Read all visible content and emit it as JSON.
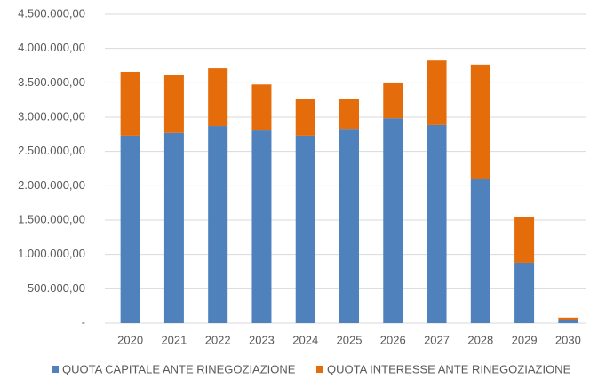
{
  "chart_data": {
    "type": "stacked_bar",
    "categories": [
      "2020",
      "2021",
      "2022",
      "2023",
      "2024",
      "2025",
      "2026",
      "2027",
      "2028",
      "2029",
      "2030"
    ],
    "series": [
      {
        "name": "QUOTA CAPITALE ANTE RINEGOZIAZIONE",
        "color": "#4f81bd",
        "values": [
          2730000,
          2770000,
          2870000,
          2805000,
          2730000,
          2830000,
          2985000,
          2885000,
          2095000,
          880000,
          40000
        ]
      },
      {
        "name": "QUOTA INTERESSE ANTE RINEGOZIAZIONE",
        "color": "#e46c0a",
        "values": [
          930000,
          840000,
          840000,
          670000,
          540000,
          440000,
          520000,
          940000,
          1670000,
          670000,
          40000
        ]
      }
    ],
    "ylim": [
      0,
      4500000
    ],
    "yticks": [
      {
        "value": 0,
        "label": "-"
      },
      {
        "value": 500000,
        "label": "500.000,00"
      },
      {
        "value": 1000000,
        "label": "1.000.000,00"
      },
      {
        "value": 1500000,
        "label": "1.500.000,00"
      },
      {
        "value": 2000000,
        "label": "2.000.000,00"
      },
      {
        "value": 2500000,
        "label": "2.500.000,00"
      },
      {
        "value": 3000000,
        "label": "3.000.000,00"
      },
      {
        "value": 3500000,
        "label": "3.500.000,00"
      },
      {
        "value": 4000000,
        "label": "4.000.000,00"
      },
      {
        "value": 4500000,
        "label": "4.500.000,00"
      }
    ],
    "grid": true,
    "legend": "bottom"
  }
}
